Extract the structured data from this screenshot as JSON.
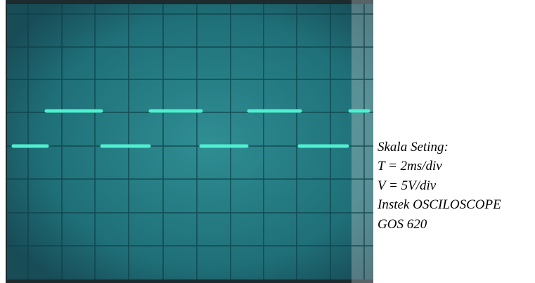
{
  "caption": {
    "lines": [
      "Skala Seting:",
      "T = 2ms/div",
      "V = 5V/div",
      "Instek OSCILOSCOPE",
      "GOS 620"
    ]
  }
}
